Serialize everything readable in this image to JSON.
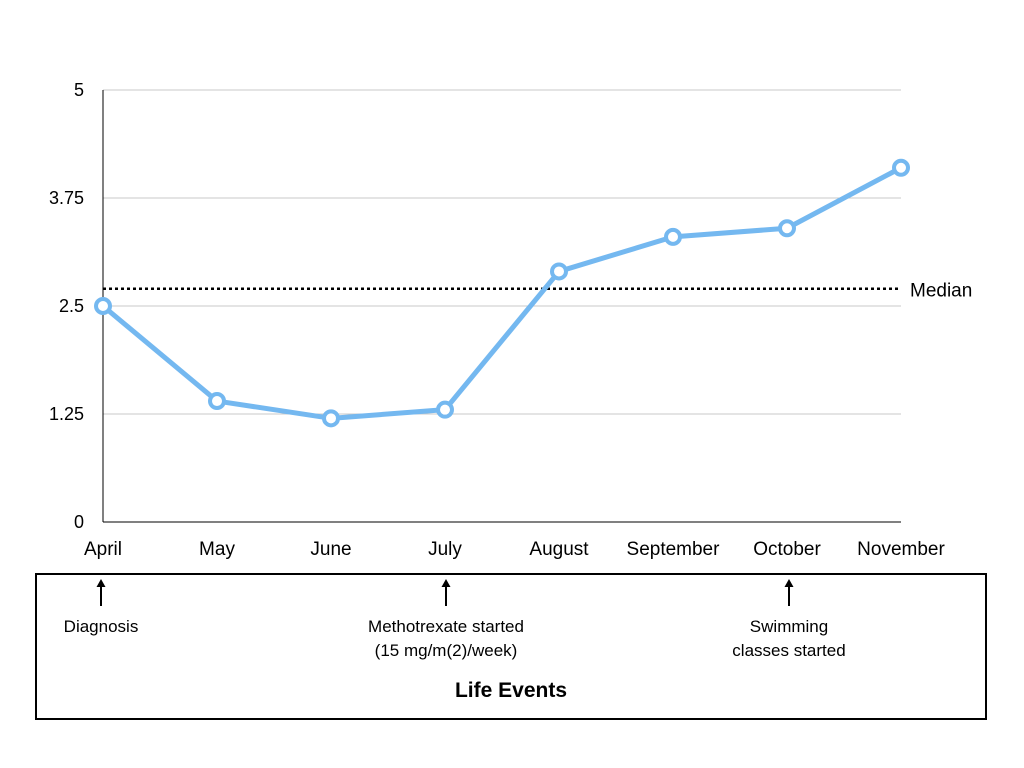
{
  "chart_data": {
    "type": "line",
    "title": "",
    "xlabel": "",
    "ylabel": "",
    "categories": [
      "April",
      "May",
      "June",
      "July",
      "August",
      "September",
      "October",
      "November"
    ],
    "series": [
      {
        "values": [
          2.5,
          1.4,
          1.2,
          1.3,
          2.9,
          3.3,
          3.4,
          4.1
        ],
        "color": "#74b8f0"
      }
    ],
    "ylim": [
      0,
      5
    ],
    "yticks": [
      0,
      1.25,
      2.5,
      3.75,
      5
    ],
    "ytick_labels": [
      "0",
      "1.25",
      "2.5",
      "3.75",
      "5"
    ],
    "grid": true,
    "reference_line": {
      "label": "Median",
      "value": 2.7,
      "style": "dotted",
      "color": "#000000"
    }
  },
  "life_events": {
    "title": "Life Events",
    "items": [
      {
        "category": "April",
        "lines": [
          "Diagnosis"
        ]
      },
      {
        "category": "July",
        "lines": [
          "Methotrexate started",
          "(15 mg/m(2)/week)"
        ]
      },
      {
        "category": "October",
        "lines": [
          "Swimming",
          "classes started"
        ]
      }
    ]
  },
  "icons": {
    "event_marker": "arrow-up-icon"
  }
}
